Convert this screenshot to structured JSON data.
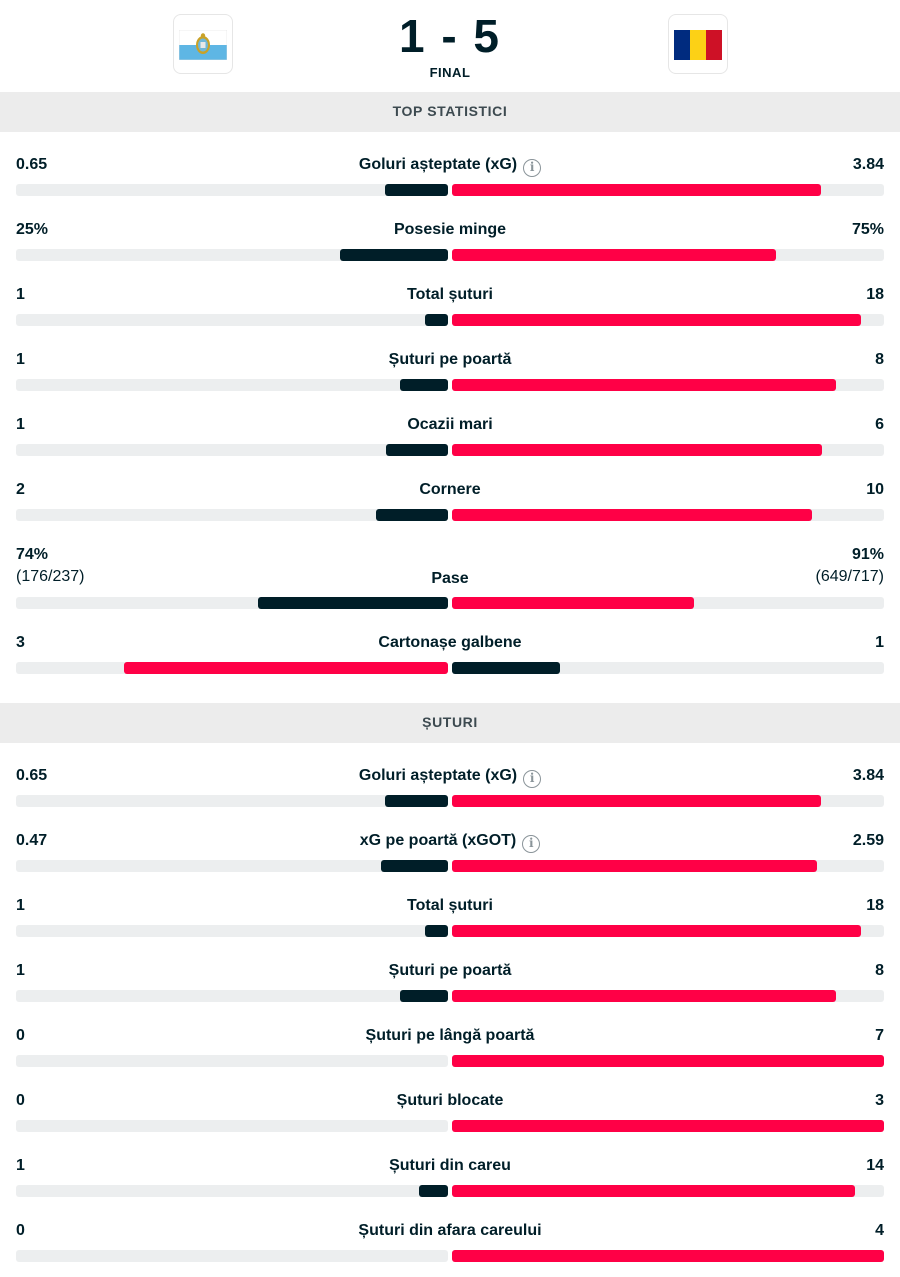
{
  "match": {
    "score": "1 - 5",
    "status": "FINAL",
    "home_flag": "san-marino-flag",
    "away_flag": "romania-flag"
  },
  "colors": {
    "home": "#001e28",
    "away": "#ff0046",
    "track": "#eceeef"
  },
  "sections": [
    {
      "title": "TOP STATISTICI",
      "rows": [
        {
          "label": "Goluri așteptate (xG)",
          "home": "0.65",
          "away": "3.84",
          "info": true,
          "home_share": 0.145,
          "away_share": 0.855
        },
        {
          "label": "Posesie minge",
          "home": "25%",
          "away": "75%",
          "home_share": 0.25,
          "away_share": 0.75
        },
        {
          "label": "Total șuturi",
          "home": "1",
          "away": "18",
          "home_share": 0.053,
          "away_share": 0.947
        },
        {
          "label": "Șuturi pe poartă",
          "home": "1",
          "away": "8",
          "home_share": 0.111,
          "away_share": 0.889
        },
        {
          "label": "Ocazii mari",
          "home": "1",
          "away": "6",
          "home_share": 0.143,
          "away_share": 0.857
        },
        {
          "label": "Cornere",
          "home": "2",
          "away": "10",
          "home_share": 0.167,
          "away_share": 0.833
        },
        {
          "label": "Pase",
          "home": "74%",
          "away": "91%",
          "home_sub": "(176/237)",
          "away_sub": "(649/717)",
          "home_share": 0.44,
          "away_share": 0.56
        },
        {
          "label": "Cartonașe galbene",
          "home": "3",
          "away": "1",
          "home_share": 0.75,
          "away_share": 0.25,
          "home_fill_color": "#ff0046",
          "away_fill_color": "#001e28"
        }
      ]
    },
    {
      "title": "ȘUTURI",
      "rows": [
        {
          "label": "Goluri așteptate (xG)",
          "home": "0.65",
          "away": "3.84",
          "info": true,
          "home_share": 0.145,
          "away_share": 0.855
        },
        {
          "label": "xG pe poartă (xGOT)",
          "home": "0.47",
          "away": "2.59",
          "info": true,
          "home_share": 0.155,
          "away_share": 0.845
        },
        {
          "label": "Total șuturi",
          "home": "1",
          "away": "18",
          "home_share": 0.053,
          "away_share": 0.947
        },
        {
          "label": "Șuturi pe poartă",
          "home": "1",
          "away": "8",
          "home_share": 0.111,
          "away_share": 0.889
        },
        {
          "label": "Șuturi pe lângă poartă",
          "home": "0",
          "away": "7",
          "home_share": 0,
          "away_share": 1
        },
        {
          "label": "Șuturi blocate",
          "home": "0",
          "away": "3",
          "home_share": 0,
          "away_share": 1
        },
        {
          "label": "Șuturi din careu",
          "home": "1",
          "away": "14",
          "home_share": 0.067,
          "away_share": 0.933
        },
        {
          "label": "Șuturi din afara careului",
          "home": "0",
          "away": "4",
          "home_share": 0,
          "away_share": 1
        }
      ]
    }
  ]
}
